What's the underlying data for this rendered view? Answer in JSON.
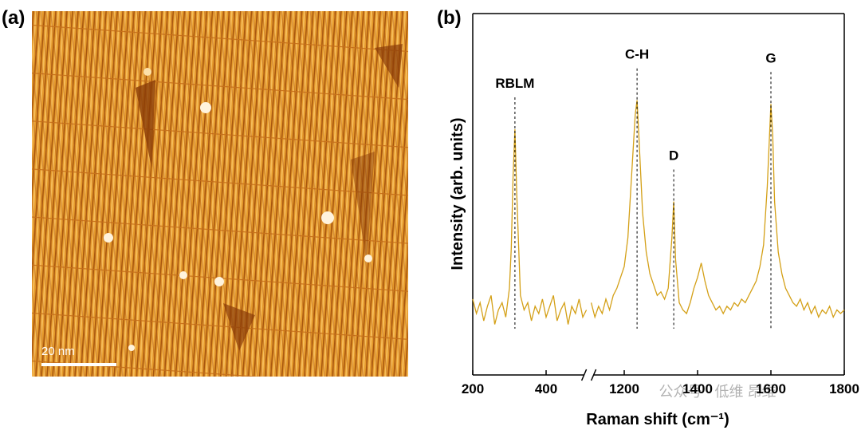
{
  "panel_a": {
    "label": "(a)",
    "scale_bar": "20 nm"
  },
  "chart_data": {
    "type": "line",
    "panel_label": "(b)",
    "x_label": "Raman shift (cm⁻¹)",
    "y_label": "Intensity (arb. units)",
    "xlim": [
      200,
      1800
    ],
    "x_break": [
      510,
      1110
    ],
    "ylim": [
      0,
      100
    ],
    "xticks": [
      200,
      400,
      1200,
      1400,
      1600,
      1800
    ],
    "x": [
      200,
      210,
      220,
      230,
      240,
      250,
      260,
      270,
      280,
      290,
      300,
      305,
      310,
      315,
      320,
      330,
      340,
      350,
      360,
      370,
      380,
      390,
      400,
      410,
      420,
      430,
      440,
      450,
      460,
      470,
      480,
      490,
      500,
      510,
      800,
      1110,
      1120,
      1130,
      1140,
      1150,
      1160,
      1170,
      1180,
      1190,
      1200,
      1210,
      1220,
      1230,
      1235,
      1240,
      1250,
      1260,
      1270,
      1280,
      1290,
      1300,
      1310,
      1320,
      1330,
      1335,
      1340,
      1350,
      1360,
      1370,
      1380,
      1390,
      1400,
      1410,
      1420,
      1430,
      1440,
      1450,
      1460,
      1470,
      1480,
      1490,
      1500,
      1510,
      1520,
      1530,
      1540,
      1550,
      1560,
      1570,
      1580,
      1590,
      1600,
      1605,
      1610,
      1620,
      1630,
      1640,
      1650,
      1660,
      1670,
      1680,
      1690,
      1700,
      1710,
      1720,
      1730,
      1740,
      1750,
      1760,
      1770,
      1780,
      1790,
      1800
    ],
    "series": [
      {
        "color": "#d4a017",
        "values": [
          21,
          17,
          20,
          15,
          19,
          22,
          14,
          18,
          20,
          16,
          24,
          35,
          55,
          68,
          50,
          22,
          18,
          20,
          15,
          19,
          17,
          21,
          16,
          19,
          22,
          15,
          18,
          20,
          14,
          19,
          17,
          21,
          16,
          18,
          null,
          20,
          16,
          19,
          17,
          21,
          18,
          22,
          24,
          27,
          30,
          38,
          55,
          72,
          76,
          66,
          45,
          34,
          28,
          25,
          22,
          23,
          21,
          24,
          38,
          48,
          32,
          20,
          18,
          17,
          20,
          24,
          27,
          31,
          26,
          22,
          20,
          18,
          19,
          17,
          19,
          18,
          20,
          19,
          21,
          20,
          22,
          24,
          26,
          30,
          36,
          52,
          75,
          66,
          48,
          34,
          28,
          24,
          22,
          20,
          19,
          21,
          18,
          20,
          17,
          19,
          16,
          18,
          17,
          19,
          16,
          18,
          17,
          18
        ]
      }
    ],
    "annotations": [
      {
        "text": "RBLM",
        "x": 315
      },
      {
        "text": "C-H",
        "x": 1235
      },
      {
        "text": "D",
        "x": 1335
      },
      {
        "text": "G",
        "x": 1600
      }
    ]
  },
  "watermark": "公众号 · 低维 昂维"
}
